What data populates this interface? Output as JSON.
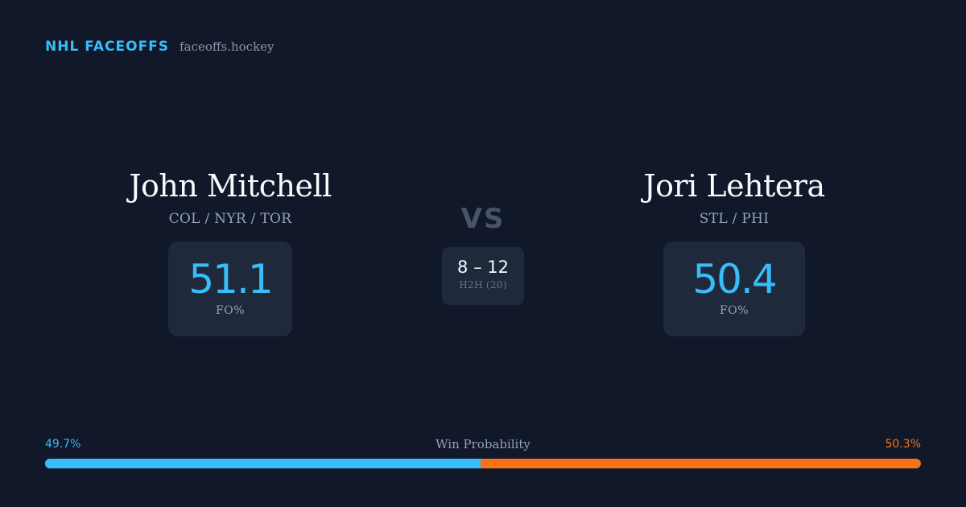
{
  "brand": {
    "name": "NHL FACEOFFS",
    "url": "faceoffs.hockey"
  },
  "players": [
    {
      "name": "John Mitchell",
      "teams": "COL / NYR / TOR",
      "stat_value": "51.1",
      "stat_label": "FO%"
    },
    {
      "name": "Jori Lehtera",
      "teams": "STL / PHI",
      "stat_value": "50.4",
      "stat_label": "FO%"
    }
  ],
  "versus": {
    "label": "VS",
    "h2h_score": "8 – 12",
    "h2h_label": "H2H (20)"
  },
  "win_probability": {
    "title": "Win Probability",
    "left_label": "49.7%",
    "right_label": "50.3%",
    "left_fraction": 0.497,
    "left_color": "#38bdf8",
    "right_color": "#f97316"
  },
  "colors": {
    "background": "#101829",
    "card": "#1e293b",
    "accent": "#38bdf8"
  }
}
